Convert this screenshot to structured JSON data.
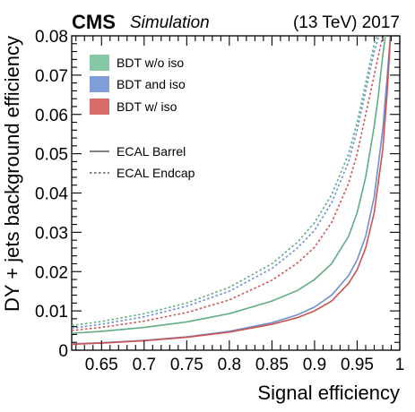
{
  "header": {
    "experiment": "CMS",
    "qualifier": "Simulation",
    "energy_year": "(13 TeV) 2017"
  },
  "chart_data": {
    "type": "line",
    "title": "",
    "xlabel": "Signal efficiency",
    "ylabel": "DY + jets background efficiency",
    "xlim": [
      0.615,
      1.0
    ],
    "ylim": [
      0,
      0.08
    ],
    "x_ticks": [
      0.65,
      0.7,
      0.75,
      0.8,
      0.85,
      0.9,
      0.95,
      1.0
    ],
    "x_tick_labels": [
      "0.65",
      "0.7",
      "0.75",
      "0.8",
      "0.85",
      "0.9",
      "0.95",
      "1"
    ],
    "y_ticks": [
      0,
      0.01,
      0.02,
      0.03,
      0.04,
      0.05,
      0.06,
      0.07,
      0.08
    ],
    "y_tick_labels": [
      "0",
      "0.01",
      "0.02",
      "0.03",
      "0.04",
      "0.05",
      "0.06",
      "0.07",
      "0.08"
    ],
    "grid": false,
    "legend_position": "top-left",
    "legend_colors": [
      {
        "label": "BDT w/o iso",
        "color": "#86c8a4"
      },
      {
        "label": "BDT and iso",
        "color": "#7f9fd8"
      },
      {
        "label": "BDT w/ iso",
        "color": "#d86a6a"
      }
    ],
    "legend_styles": [
      {
        "label": "ECAL Barrel",
        "dash": "solid"
      },
      {
        "label": "ECAL Endcap",
        "dash": "dashed"
      }
    ],
    "series": [
      {
        "method": "BDT w/o iso",
        "region": "ECAL Barrel",
        "color": "#5fae84",
        "dash": "solid",
        "x": [
          0.615,
          0.65,
          0.7,
          0.75,
          0.8,
          0.85,
          0.88,
          0.9,
          0.92,
          0.94,
          0.95,
          0.96,
          0.97,
          0.975,
          0.98,
          0.985
        ],
        "y": [
          0.0043,
          0.0048,
          0.0058,
          0.0072,
          0.0093,
          0.0125,
          0.0152,
          0.018,
          0.022,
          0.029,
          0.035,
          0.044,
          0.057,
          0.065,
          0.075,
          0.083
        ]
      },
      {
        "method": "BDT w/o iso",
        "region": "ECAL Endcap",
        "color": "#5fae84",
        "dash": "dashed",
        "x": [
          0.615,
          0.65,
          0.7,
          0.75,
          0.8,
          0.85,
          0.88,
          0.9,
          0.92,
          0.94,
          0.95,
          0.96,
          0.97,
          0.978
        ],
        "y": [
          0.0063,
          0.0073,
          0.0093,
          0.012,
          0.016,
          0.022,
          0.0275,
          0.0325,
          0.0395,
          0.05,
          0.058,
          0.068,
          0.078,
          0.083
        ]
      },
      {
        "method": "BDT and iso",
        "region": "ECAL Barrel",
        "color": "#6e90d0",
        "dash": "solid",
        "x": [
          0.615,
          0.65,
          0.7,
          0.75,
          0.8,
          0.85,
          0.88,
          0.9,
          0.92,
          0.94,
          0.95,
          0.96,
          0.97,
          0.98,
          0.985,
          0.99
        ],
        "y": [
          0.0016,
          0.0019,
          0.0025,
          0.0034,
          0.0048,
          0.007,
          0.009,
          0.011,
          0.014,
          0.019,
          0.023,
          0.029,
          0.039,
          0.056,
          0.069,
          0.083
        ]
      },
      {
        "method": "BDT and iso",
        "region": "ECAL Endcap",
        "color": "#6e90d0",
        "dash": "dashed",
        "x": [
          0.615,
          0.65,
          0.7,
          0.75,
          0.8,
          0.85,
          0.88,
          0.9,
          0.92,
          0.94,
          0.95,
          0.96,
          0.97,
          0.98
        ],
        "y": [
          0.0056,
          0.0066,
          0.0085,
          0.0112,
          0.015,
          0.0208,
          0.026,
          0.0305,
          0.0375,
          0.048,
          0.056,
          0.066,
          0.076,
          0.083
        ]
      },
      {
        "method": "BDT w/ iso",
        "region": "ECAL Barrel",
        "color": "#cf5252",
        "dash": "solid",
        "x": [
          0.615,
          0.65,
          0.7,
          0.75,
          0.8,
          0.85,
          0.88,
          0.9,
          0.92,
          0.94,
          0.95,
          0.96,
          0.97,
          0.98,
          0.985,
          0.99
        ],
        "y": [
          0.0015,
          0.0018,
          0.0024,
          0.0033,
          0.0046,
          0.0066,
          0.0083,
          0.01,
          0.0125,
          0.017,
          0.0205,
          0.026,
          0.035,
          0.051,
          0.065,
          0.083
        ]
      },
      {
        "method": "BDT w/ iso",
        "region": "ECAL Endcap",
        "color": "#cf5252",
        "dash": "dashed",
        "x": [
          0.615,
          0.65,
          0.7,
          0.75,
          0.8,
          0.85,
          0.88,
          0.9,
          0.92,
          0.94,
          0.95,
          0.96,
          0.97,
          0.98,
          0.985
        ],
        "y": [
          0.005,
          0.0058,
          0.0074,
          0.0096,
          0.0128,
          0.0178,
          0.0222,
          0.0262,
          0.0325,
          0.0425,
          0.05,
          0.06,
          0.07,
          0.08,
          0.083
        ]
      }
    ]
  }
}
